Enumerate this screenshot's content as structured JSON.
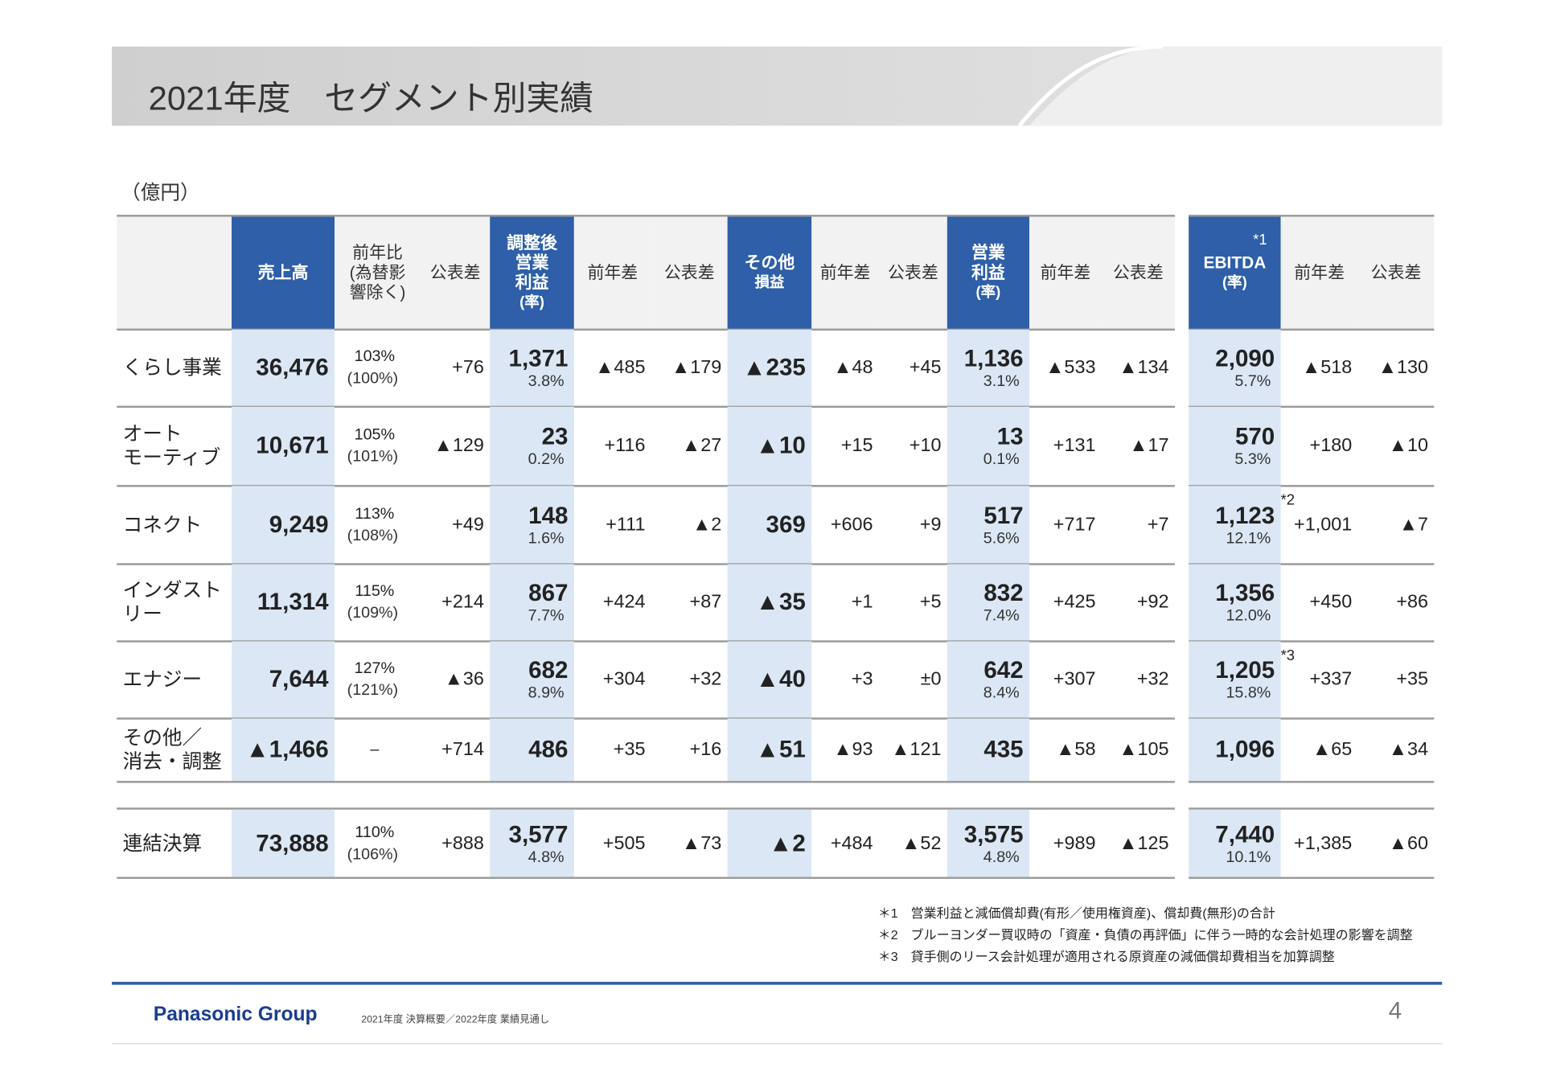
{
  "header": {
    "title": "2021年度　セグメント別実績",
    "unit": "（億円）"
  },
  "table": {
    "headers": [
      [
        "売上高"
      ],
      [
        "前年比",
        "(為替影",
        "響除く)"
      ],
      [
        "公表差"
      ],
      [
        "調整後",
        "営業",
        "利益",
        "(率)"
      ],
      [
        "前年差"
      ],
      [
        "公表差"
      ],
      [
        "その他",
        "損益"
      ],
      [
        "前年差"
      ],
      [
        "公表差"
      ],
      [
        "営業",
        "利益",
        "(率)"
      ],
      [
        "前年差"
      ],
      [
        "公表差"
      ],
      [
        "EBITDA",
        "(率)"
      ],
      [
        "前年差"
      ],
      [
        "公表差"
      ]
    ],
    "header_note": "*1",
    "rows": [
      {
        "name": [
          "くらし事業"
        ],
        "cells": [
          [
            "36,476"
          ],
          [
            "103%",
            "(100%)"
          ],
          [
            "+76"
          ],
          [
            "1,371",
            "3.8%"
          ],
          [
            "▲485"
          ],
          [
            "▲179"
          ],
          [
            "▲235"
          ],
          [
            "▲48"
          ],
          [
            "+45"
          ],
          [
            "1,136",
            "3.1%"
          ],
          [
            "▲533"
          ],
          [
            "▲134"
          ],
          [
            "2,090",
            "5.7%"
          ],
          [
            "▲518"
          ],
          [
            "▲130"
          ]
        ]
      },
      {
        "name": [
          "オート",
          "モーティブ"
        ],
        "cells": [
          [
            "10,671"
          ],
          [
            "105%",
            "(101%)"
          ],
          [
            "▲129"
          ],
          [
            "23",
            "0.2%"
          ],
          [
            "+116"
          ],
          [
            "▲27"
          ],
          [
            "▲10"
          ],
          [
            "+15"
          ],
          [
            "+10"
          ],
          [
            "13",
            "0.1%"
          ],
          [
            "+131"
          ],
          [
            "▲17"
          ],
          [
            "570",
            "5.3%"
          ],
          [
            "+180"
          ],
          [
            "▲10"
          ]
        ]
      },
      {
        "name": [
          "コネクト"
        ],
        "cells": [
          [
            "9,249"
          ],
          [
            "113%",
            "(108%)"
          ],
          [
            "+49"
          ],
          [
            "148",
            "1.6%"
          ],
          [
            "+111"
          ],
          [
            "▲2"
          ],
          [
            "369"
          ],
          [
            "+606"
          ],
          [
            "+9"
          ],
          [
            "517",
            "5.6%"
          ],
          [
            "+717"
          ],
          [
            "+7"
          ],
          [
            "1,123",
            "12.1%"
          ],
          [
            "+1,001"
          ],
          [
            "▲7"
          ]
        ],
        "note": "*2"
      },
      {
        "name": [
          "インダストリー"
        ],
        "cells": [
          [
            "11,314"
          ],
          [
            "115%",
            "(109%)"
          ],
          [
            "+214"
          ],
          [
            "867",
            "7.7%"
          ],
          [
            "+424"
          ],
          [
            "+87"
          ],
          [
            "▲35"
          ],
          [
            "+1"
          ],
          [
            "+5"
          ],
          [
            "832",
            "7.4%"
          ],
          [
            "+425"
          ],
          [
            "+92"
          ],
          [
            "1,356",
            "12.0%"
          ],
          [
            "+450"
          ],
          [
            "+86"
          ]
        ]
      },
      {
        "name": [
          "エナジー"
        ],
        "cells": [
          [
            "7,644"
          ],
          [
            "127%",
            "(121%)"
          ],
          [
            "▲36"
          ],
          [
            "682",
            "8.9%"
          ],
          [
            "+304"
          ],
          [
            "+32"
          ],
          [
            "▲40"
          ],
          [
            "+3"
          ],
          [
            "±0"
          ],
          [
            "642",
            "8.4%"
          ],
          [
            "+307"
          ],
          [
            "+32"
          ],
          [
            "1,205",
            "15.8%"
          ],
          [
            "+337"
          ],
          [
            "+35"
          ]
        ],
        "note": "*3"
      },
      {
        "name": [
          "その他／",
          "消去・調整"
        ],
        "cells": [
          [
            "▲1,466"
          ],
          [
            "–"
          ],
          [
            "+714"
          ],
          [
            "486"
          ],
          [
            "+35"
          ],
          [
            "+16"
          ],
          [
            "▲51"
          ],
          [
            "▲93"
          ],
          [
            "▲121"
          ],
          [
            "435"
          ],
          [
            "▲58"
          ],
          [
            "▲105"
          ],
          [
            "1,096"
          ],
          [
            "▲65"
          ],
          [
            "▲34"
          ]
        ]
      }
    ],
    "total": {
      "name": [
        "連結決算"
      ],
      "cells": [
        [
          "73,888"
        ],
        [
          "110%",
          "(106%)"
        ],
        [
          "+888"
        ],
        [
          "3,577",
          "4.8%"
        ],
        [
          "+505"
        ],
        [
          "▲73"
        ],
        [
          "▲2"
        ],
        [
          "+484"
        ],
        [
          "▲52"
        ],
        [
          "3,575",
          "4.8%"
        ],
        [
          "+989"
        ],
        [
          "▲125"
        ],
        [
          "7,440",
          "10.1%"
        ],
        [
          "+1,385"
        ],
        [
          "▲60"
        ]
      ]
    }
  },
  "footnotes": [
    "＊1　営業利益と減価償却費(有形／使用権資産)、償却費(無形)の合計",
    "＊2　ブルーヨンダー買収時の「資産・負債の再評価」に伴う一時的な会計処理の影響を調整",
    "＊3　貸手側のリース会計処理が適用される原資産の減価償却費相当を加算調整"
  ],
  "footer": {
    "brand": "Panasonic Group",
    "subtitle": "2021年度 決算概要／2022年度 業績見通し",
    "page": "4"
  }
}
